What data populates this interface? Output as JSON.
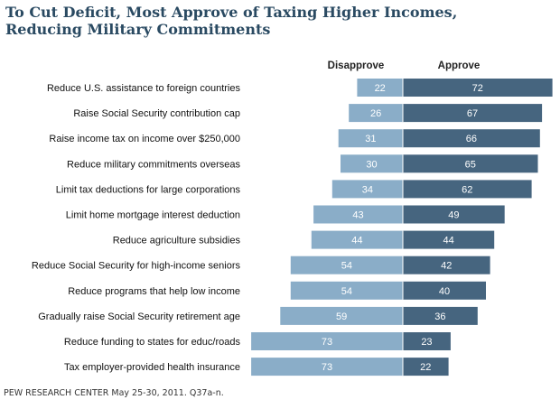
{
  "title": {
    "line1": "To Cut Deficit, Most Approve of Taxing Higher Incomes,",
    "line2": "Reducing Military Commitments"
  },
  "footer": "PEW RESEARCH CENTER May 25-30, 2011. Q37a-n.",
  "colors": {
    "disapprove": "#8aadc8",
    "approve": "#46657f",
    "title": "#2a4a62",
    "divider": "#ffffff"
  },
  "chart_data": {
    "type": "bar",
    "orientation": "horizontal-diverging",
    "categories": [
      "Reduce U.S. assistance to foreign countries",
      "Raise Social Security contribution cap",
      "Raise income tax on income over $250,000",
      "Reduce military commitments overseas",
      "Limit tax deductions for large corporations",
      "Limit home mortgage interest deduction",
      "Reduce agriculture subsidies",
      "Reduce Social Security for high-income seniors",
      "Reduce programs that help low income",
      "Gradually raise Social Security retirement age",
      "Reduce funding to states for educ/roads",
      "Tax employer-provided health insurance"
    ],
    "series": [
      {
        "name": "Disapprove",
        "values": [
          22,
          26,
          31,
          30,
          34,
          43,
          44,
          54,
          54,
          59,
          73,
          73
        ]
      },
      {
        "name": "Approve",
        "values": [
          72,
          67,
          66,
          65,
          62,
          49,
          44,
          42,
          40,
          36,
          23,
          22
        ]
      }
    ],
    "legend": "top"
  }
}
